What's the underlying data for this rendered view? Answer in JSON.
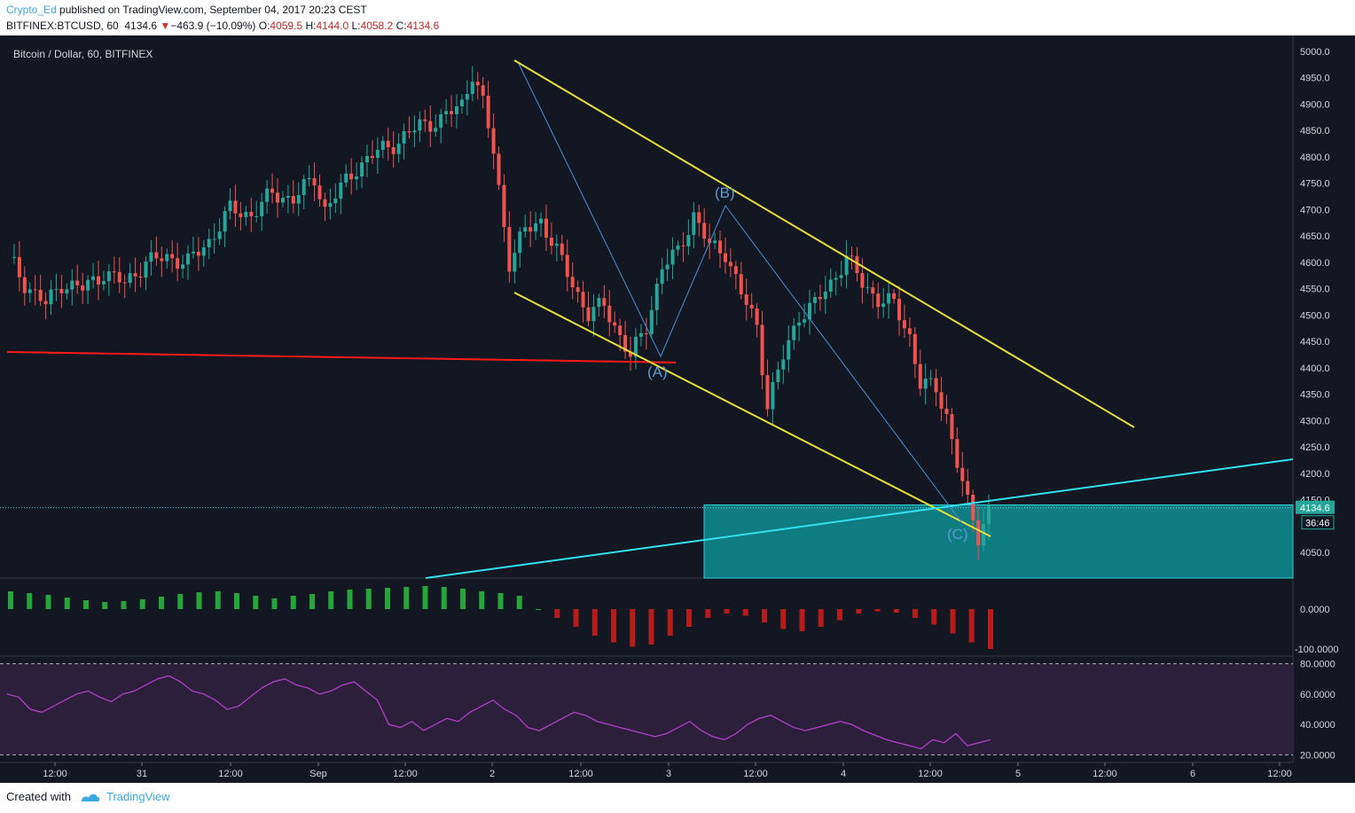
{
  "header": {
    "author": "Crypto_Ed",
    "published": "published on TradingView.com, September 04, 2017 20:23 CEST",
    "symbol": "BITFINEX:BTCUSD, 60",
    "last": "4134.6",
    "change_arrow": "▼",
    "change": "−463.9 (−10.09%)",
    "o_label": "O:",
    "o": "4059.5",
    "h_label": "H:",
    "h": "4144.0",
    "l_label": "L:",
    "l": "4058.2",
    "c_label": "C:",
    "c": "4134.6"
  },
  "chart_title": "Bitcoin / Dollar, 60, BITFINEX",
  "price_axis": {
    "ticks": [
      "5000.0",
      "4950.0",
      "4900.0",
      "4850.0",
      "4800.0",
      "4750.0",
      "4700.0",
      "4650.0",
      "4600.0",
      "4550.0",
      "4500.0",
      "4450.0",
      "4400.0",
      "4350.0",
      "4300.0",
      "4250.0",
      "4200.0",
      "4150.0",
      "4050.0"
    ],
    "last_price_label": "4134.6",
    "countdown_label": "36:46"
  },
  "osc_axis": {
    "ticks": [
      "0.0000",
      "-100.0000"
    ]
  },
  "rsi_axis": {
    "ticks": [
      "80.0000",
      "60.0000",
      "40.0000",
      "20.0000"
    ]
  },
  "time_axis": {
    "ticks": [
      "12:00",
      "31",
      "12:00",
      "Sep",
      "12:00",
      "2",
      "12:00",
      "3",
      "12:00",
      "4",
      "12:00",
      "5",
      "12:00",
      "6",
      "12:00"
    ]
  },
  "annotations": {
    "a": "(A)",
    "b": "(B)",
    "c": "(C)"
  },
  "footer": {
    "created_with": "Created with",
    "brand": "TradingView"
  },
  "colors": {
    "background": "#131722",
    "up_candle": "#26a69a",
    "down_candle": "#ef5350",
    "channel": "#e8e03a",
    "support_line": "#ff1a1a",
    "trend_line": "#33e0f0",
    "zone": "#0e7c80",
    "rsi_line": "#b040c8",
    "rsi_band": "#2b1f3c"
  },
  "chart_data": {
    "type": "candlestick",
    "symbol": "BITFINEX:BTCUSD",
    "interval": "60",
    "ylim": [
      4000,
      5020
    ],
    "price_series": [
      {
        "t": 0,
        "p": 4610
      },
      {
        "t": 3,
        "p": 4560
      },
      {
        "t": 7,
        "p": 4520
      },
      {
        "t": 10,
        "p": 4560
      },
      {
        "t": 14,
        "p": 4550
      },
      {
        "t": 18,
        "p": 4580
      },
      {
        "t": 22,
        "p": 4560
      },
      {
        "t": 26,
        "p": 4600
      },
      {
        "t": 30,
        "p": 4610
      },
      {
        "t": 34,
        "p": 4600
      },
      {
        "t": 38,
        "p": 4640
      },
      {
        "t": 42,
        "p": 4700
      },
      {
        "t": 46,
        "p": 4690
      },
      {
        "t": 50,
        "p": 4730
      },
      {
        "t": 54,
        "p": 4720
      },
      {
        "t": 58,
        "p": 4760
      },
      {
        "t": 60,
        "p": 4700
      },
      {
        "t": 63,
        "p": 4740
      },
      {
        "t": 66,
        "p": 4780
      },
      {
        "t": 70,
        "p": 4810
      },
      {
        "t": 74,
        "p": 4830
      },
      {
        "t": 78,
        "p": 4860
      },
      {
        "t": 82,
        "p": 4870
      },
      {
        "t": 86,
        "p": 4900
      },
      {
        "t": 88,
        "p": 4960
      },
      {
        "t": 90,
        "p": 4900
      },
      {
        "t": 92,
        "p": 4810
      },
      {
        "t": 95,
        "p": 4600
      },
      {
        "t": 98,
        "p": 4660
      },
      {
        "t": 101,
        "p": 4680
      },
      {
        "t": 104,
        "p": 4620
      },
      {
        "t": 107,
        "p": 4560
      },
      {
        "t": 110,
        "p": 4500
      },
      {
        "t": 113,
        "p": 4520
      },
      {
        "t": 116,
        "p": 4460
      },
      {
        "t": 118,
        "p": 4420
      },
      {
        "t": 121,
        "p": 4480
      },
      {
        "t": 124,
        "p": 4590
      },
      {
        "t": 127,
        "p": 4620
      },
      {
        "t": 130,
        "p": 4690
      },
      {
        "t": 133,
        "p": 4630
      },
      {
        "t": 136,
        "p": 4620
      },
      {
        "t": 139,
        "p": 4540
      },
      {
        "t": 142,
        "p": 4480
      },
      {
        "t": 144,
        "p": 4330
      },
      {
        "t": 147,
        "p": 4420
      },
      {
        "t": 150,
        "p": 4500
      },
      {
        "t": 153,
        "p": 4520
      },
      {
        "t": 156,
        "p": 4560
      },
      {
        "t": 159,
        "p": 4610
      },
      {
        "t": 162,
        "p": 4560
      },
      {
        "t": 165,
        "p": 4530
      },
      {
        "t": 168,
        "p": 4520
      },
      {
        "t": 171,
        "p": 4460
      },
      {
        "t": 173,
        "p": 4370
      },
      {
        "t": 176,
        "p": 4360
      },
      {
        "t": 178,
        "p": 4310
      },
      {
        "t": 180,
        "p": 4220
      },
      {
        "t": 182,
        "p": 4140
      },
      {
        "t": 184,
        "p": 4080
      },
      {
        "t": 186,
        "p": 4134.6
      }
    ],
    "support_level": 4410,
    "target_zone": {
      "from": 4000,
      "to": 4140
    },
    "oscillator_ylim": [
      -100,
      60
    ],
    "oscillator": [
      40,
      36,
      32,
      26,
      20,
      16,
      18,
      22,
      28,
      34,
      38,
      40,
      36,
      30,
      24,
      30,
      34,
      40,
      44,
      46,
      48,
      50,
      52,
      50,
      46,
      40,
      36,
      30,
      0,
      -20,
      -40,
      -60,
      -75,
      -85,
      -80,
      -60,
      -40,
      -20,
      -10,
      -15,
      -30,
      -45,
      -50,
      -40,
      -25,
      -10,
      -5,
      -8,
      -20,
      -35,
      -55,
      -75,
      -90
    ],
    "rsi_ylim": [
      15,
      85
    ],
    "rsi": [
      60,
      58,
      50,
      48,
      52,
      56,
      60,
      62,
      58,
      55,
      60,
      62,
      66,
      70,
      72,
      68,
      62,
      60,
      56,
      50,
      52,
      58,
      64,
      68,
      70,
      66,
      64,
      60,
      62,
      66,
      68,
      62,
      56,
      40,
      38,
      42,
      36,
      40,
      44,
      42,
      48,
      52,
      56,
      50,
      46,
      38,
      36,
      40,
      44,
      48,
      46,
      42,
      40,
      38,
      36,
      34,
      32,
      34,
      38,
      42,
      36,
      32,
      30,
      34,
      40,
      44,
      46,
      42,
      38,
      36,
      38,
      40,
      42,
      40,
      36,
      33,
      30,
      28,
      26,
      24,
      30,
      28,
      34,
      26,
      28,
      30
    ]
  }
}
